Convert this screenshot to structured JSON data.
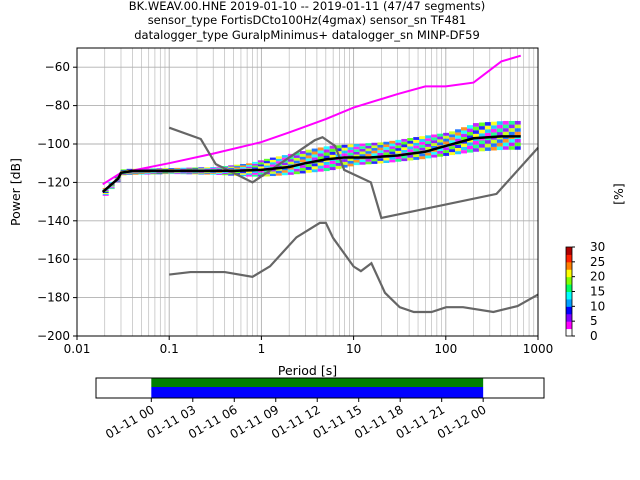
{
  "title": {
    "line1": "BK.WEAV.00.HNE   2019-01-10 -- 2019-01-11  (47/47 segments)",
    "line2": "sensor_type FortisDCto100Hz(4gmax) sensor_sn TF481",
    "line3": "datalogger_type GuralpMinimus+ datalogger_sn MINP-DF59"
  },
  "colors": {
    "nlnm_nhnm": "#666666",
    "mode_line": "#000000",
    "grid": "#b0b0b0",
    "coverage_green": "#008000",
    "coverage_blue": "#0000ff"
  },
  "chart_data": [
    {
      "type": "line",
      "title": "",
      "xlabel": "Period [s]",
      "ylabel": "Power [dB]",
      "xscale": "log",
      "xlim": [
        0.01,
        1000
      ],
      "ylim": [
        -200,
        -50
      ],
      "xticks": [
        {
          "value": 0.01,
          "label": "0.01"
        },
        {
          "value": 0.1,
          "label": "0.1"
        },
        {
          "value": 1,
          "label": "1"
        },
        {
          "value": 10,
          "label": "10"
        },
        {
          "value": 100,
          "label": "100"
        },
        {
          "value": 1000,
          "label": "1000"
        }
      ],
      "yticks": [
        {
          "value": -200,
          "label": "−200"
        },
        {
          "value": -180,
          "label": "−180"
        },
        {
          "value": -160,
          "label": "−160"
        },
        {
          "value": -140,
          "label": "−140"
        },
        {
          "value": -120,
          "label": "−120"
        },
        {
          "value": -100,
          "label": "−100"
        },
        {
          "value": -80,
          "label": "−80"
        },
        {
          "value": -60,
          "label": "−60"
        }
      ],
      "grid": true,
      "series": [
        {
          "role": "NHNM",
          "x": [
            0.1,
            0.22,
            0.32,
            0.8,
            3.8,
            4.6,
            6.3,
            7.9,
            15.4,
            20,
            354.8,
            10000
          ],
          "y": [
            -91.5,
            -97.4,
            -110.5,
            -120,
            -98,
            -96.5,
            -101,
            -113.5,
            -120,
            -138.5,
            -126,
            -48.5
          ]
        },
        {
          "role": "NLNM",
          "x": [
            0.1,
            0.17,
            0.4,
            0.8,
            1.24,
            2.4,
            4.3,
            5,
            6,
            10,
            12,
            15.6,
            21.9,
            31.6,
            45,
            70,
            101,
            154,
            328,
            600,
            10000
          ],
          "y": [
            -168,
            -166.7,
            -166.7,
            -169.2,
            -163.7,
            -148.6,
            -141.1,
            -141.1,
            -149,
            -163.8,
            -166.2,
            -162.1,
            -177.5,
            -185,
            -187.5,
            -187.5,
            -185,
            -185,
            -187.5,
            -184.4,
            -151.5
          ]
        },
        {
          "role": "mode",
          "x": [
            0.019,
            0.025,
            0.028,
            0.03,
            0.04,
            0.06,
            0.1,
            0.2,
            0.5,
            1,
            2,
            3,
            5,
            8,
            15,
            30,
            60,
            100,
            200,
            400,
            650
          ],
          "y": [
            -125,
            -120,
            -118,
            -115,
            -114,
            -114,
            -114,
            -114,
            -114,
            -113.5,
            -112,
            -110,
            -108,
            -107,
            -107,
            -106,
            -104,
            -101,
            -97,
            -96,
            -96
          ]
        }
      ],
      "psd_upper_edge": {
        "x": [
          0.019,
          0.03,
          0.1,
          0.3,
          1,
          2,
          5,
          10,
          30,
          60,
          100,
          200,
          400,
          650
        ],
        "y": [
          -121,
          -115,
          -110,
          -105,
          -99,
          -94,
          -87,
          -81,
          -74,
          -70,
          -70,
          -68,
          -57,
          -54
        ]
      },
      "psd_band": {
        "x": [
          0.019,
          0.03,
          0.1,
          0.3,
          0.7,
          1,
          2,
          3,
          5,
          10,
          20,
          50,
          100,
          200,
          400,
          650
        ],
        "lower": [
          -127,
          -116,
          -115.5,
          -116,
          -117,
          -117,
          -116,
          -115,
          -114,
          -111,
          -110,
          -108,
          -106,
          -104,
          -103,
          -103
        ],
        "upper": [
          -123,
          -113,
          -112.5,
          -112,
          -110,
          -108,
          -105,
          -103,
          -101,
          -100,
          -99,
          -96,
          -94,
          -89,
          -88,
          -88
        ]
      }
    },
    {
      "type": "bar",
      "title": "",
      "xlabel": "",
      "colorbar_label": "[%]",
      "colorbar_ticks": [
        "0",
        "5",
        "10",
        "15",
        "20",
        "25",
        "30"
      ],
      "colorbar_range": [
        0,
        30
      ]
    },
    {
      "type": "bar",
      "title": "",
      "xticks": [
        "01-11 00",
        "01-11 03",
        "01-11 06",
        "01-11 09",
        "01-11 12",
        "01-11 15",
        "01-11 18",
        "01-11 21",
        "01-12 00"
      ],
      "xlim_hours": [
        -4,
        28.4
      ],
      "coverage_hours": [
        0,
        24
      ]
    }
  ]
}
